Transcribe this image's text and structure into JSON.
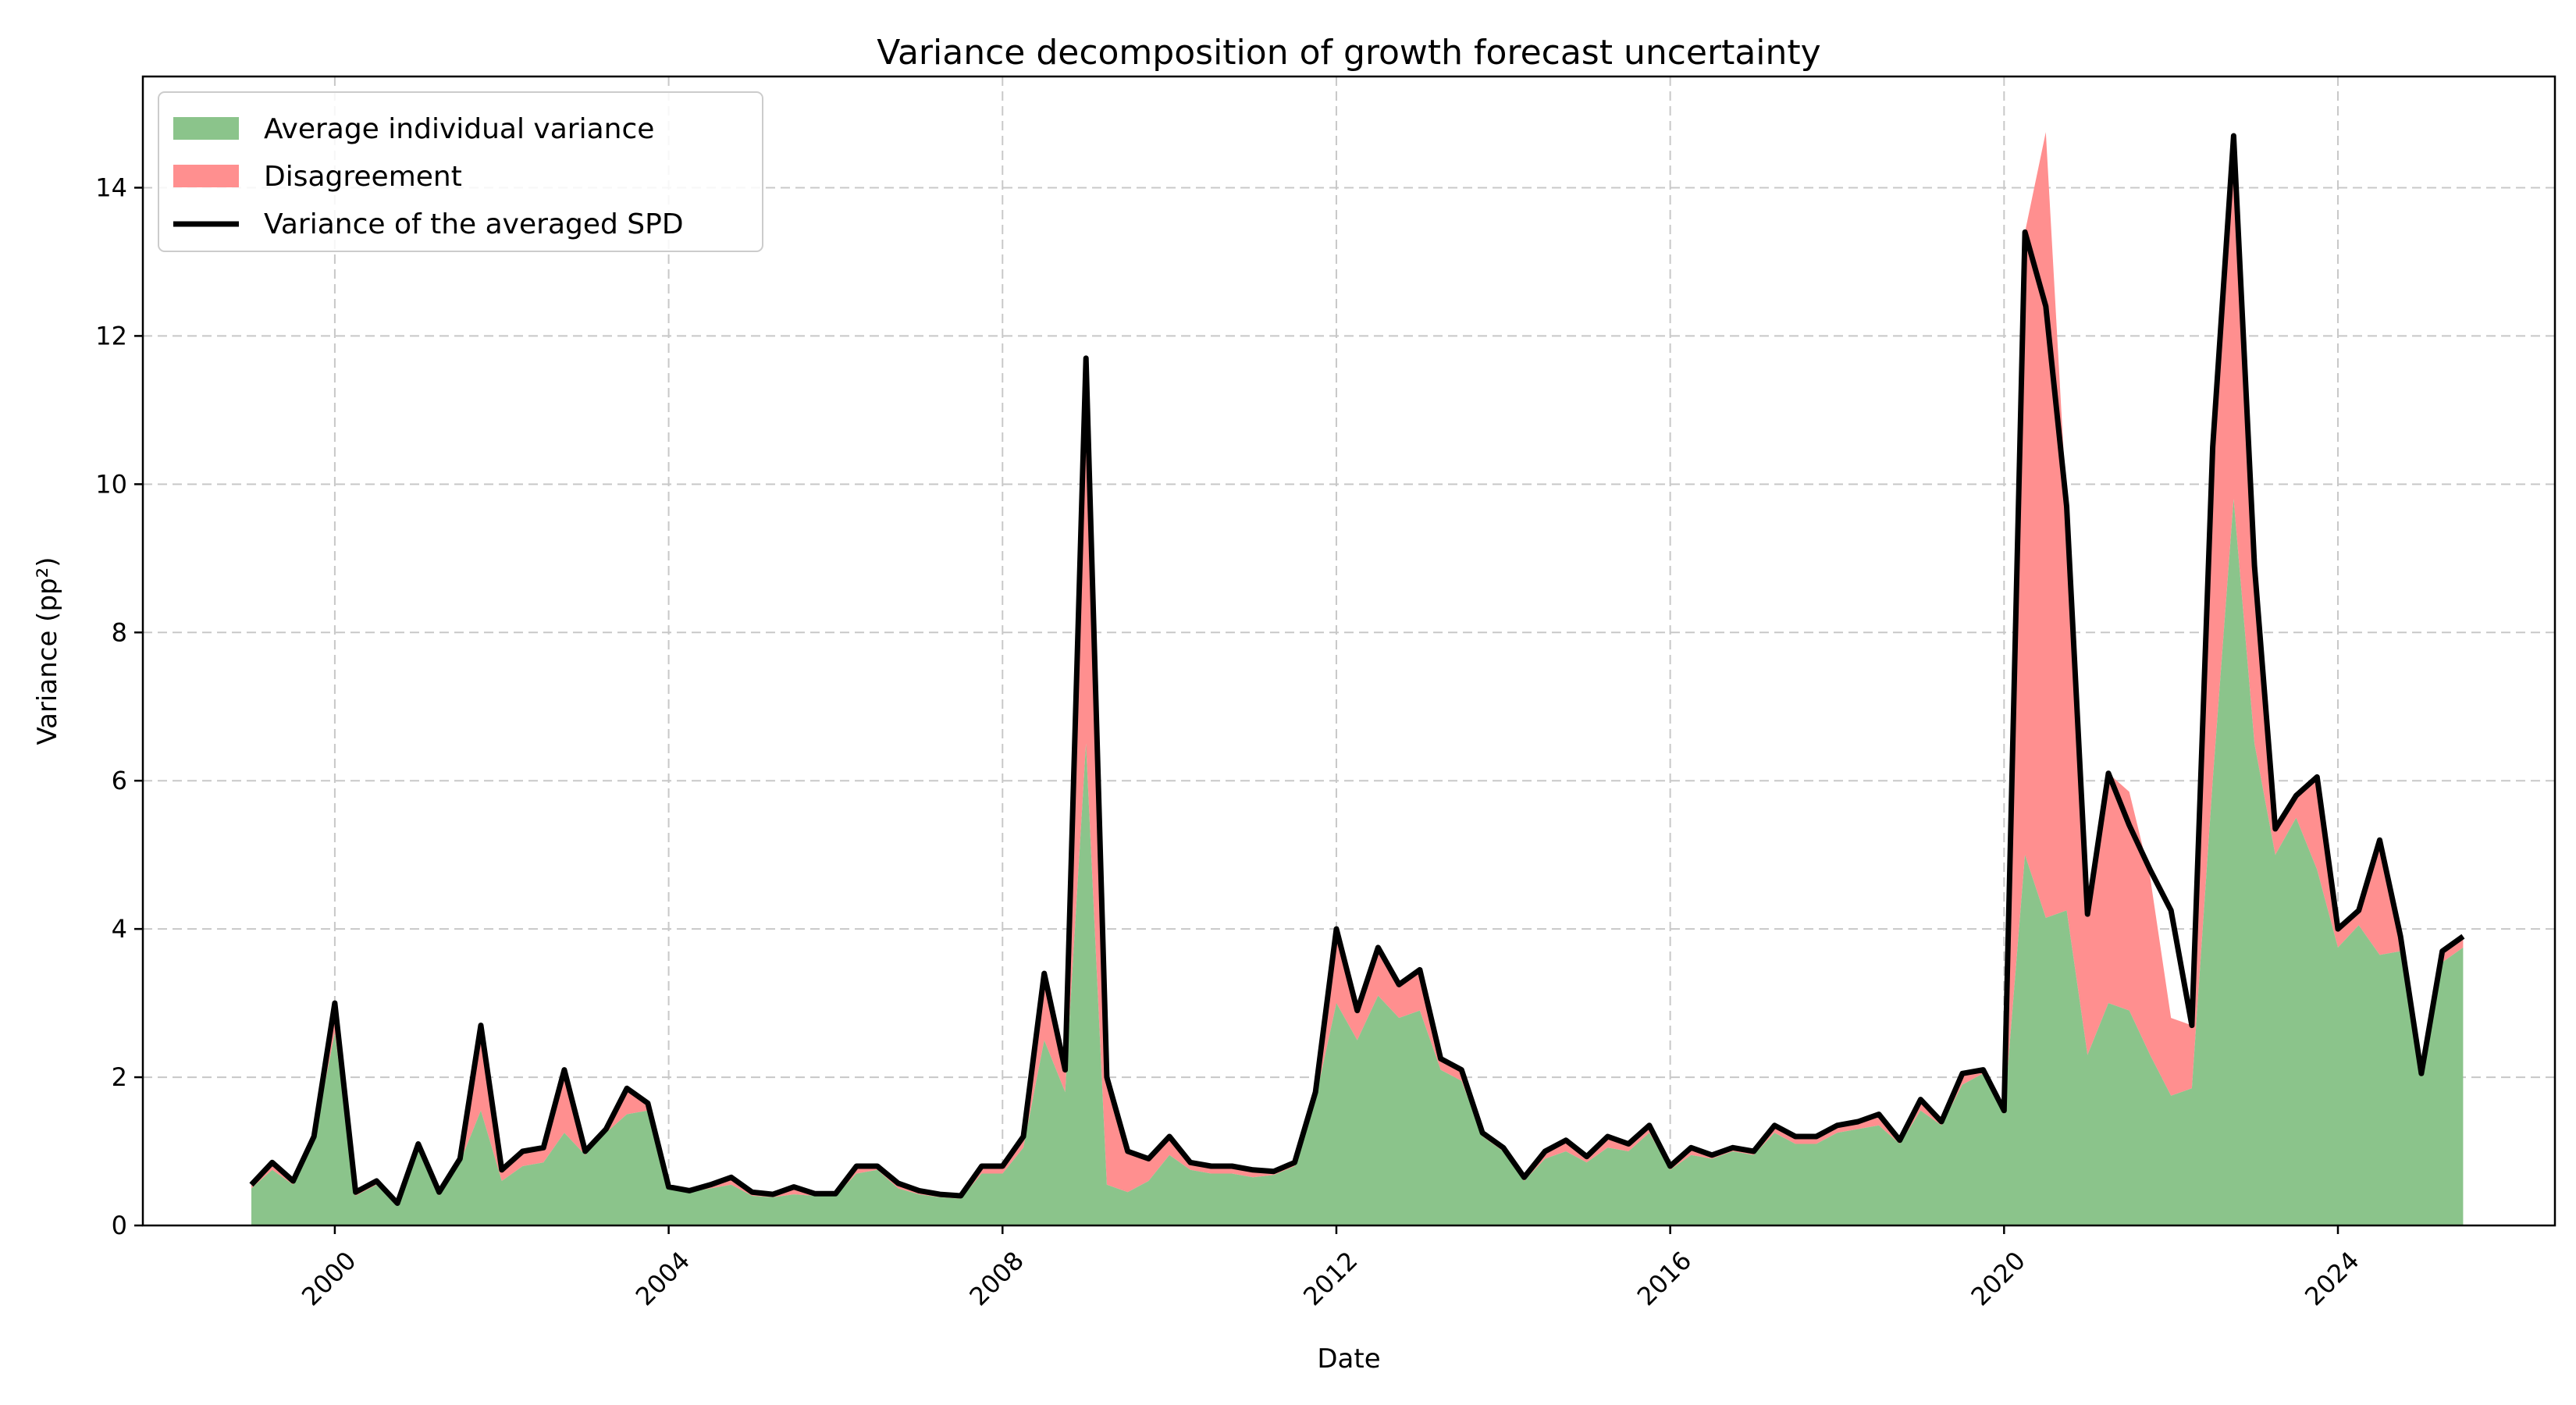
{
  "chart_data": {
    "type": "area",
    "title": "Variance decomposition of growth forecast uncertainty",
    "xlabel": "Date",
    "ylabel": "Variance (pp²)",
    "xlim": [
      1997.7,
      2026.6
    ],
    "ylim": [
      0,
      15.5
    ],
    "grid": true,
    "legend_position": "top-left",
    "x_ticks": [
      2000,
      2004,
      2008,
      2012,
      2016,
      2020,
      2024
    ],
    "x_tick_labels": [
      "2000",
      "2004",
      "2008",
      "2012",
      "2016",
      "2020",
      "2024"
    ],
    "y_ticks": [
      0,
      2,
      4,
      6,
      8,
      10,
      12,
      14
    ],
    "y_tick_labels": [
      "0",
      "2",
      "4",
      "6",
      "8",
      "10",
      "12",
      "14"
    ],
    "colors": {
      "individual": "#8bc48b",
      "disagreement": "#ff8f8f",
      "total": "#000000",
      "grid": "#c8c8c8"
    },
    "legend": [
      {
        "label": "Average individual variance",
        "kind": "patch",
        "color": "#8bc48b"
      },
      {
        "label": "Disagreement",
        "kind": "patch",
        "color": "#ff8f8f"
      },
      {
        "label": "Variance of the averaged SPD",
        "kind": "line",
        "color": "#000000"
      }
    ],
    "x": [
      1999.0,
      1999.25,
      1999.5,
      1999.75,
      2000.0,
      2000.25,
      2000.5,
      2000.75,
      2001.0,
      2001.25,
      2001.5,
      2001.75,
      2002.0,
      2002.25,
      2002.5,
      2002.75,
      2003.0,
      2003.25,
      2003.5,
      2003.75,
      2004.0,
      2004.25,
      2004.5,
      2004.75,
      2005.0,
      2005.25,
      2005.5,
      2005.75,
      2006.0,
      2006.25,
      2006.5,
      2006.75,
      2007.0,
      2007.25,
      2007.5,
      2007.75,
      2008.0,
      2008.25,
      2008.5,
      2008.75,
      2009.0,
      2009.25,
      2009.5,
      2009.75,
      2010.0,
      2010.25,
      2010.5,
      2010.75,
      2011.0,
      2011.25,
      2011.5,
      2011.75,
      2012.0,
      2012.25,
      2012.5,
      2012.75,
      2013.0,
      2013.25,
      2013.5,
      2013.75,
      2014.0,
      2014.25,
      2014.5,
      2014.75,
      2015.0,
      2015.25,
      2015.5,
      2015.75,
      2016.0,
      2016.25,
      2016.5,
      2016.75,
      2017.0,
      2017.25,
      2017.5,
      2017.75,
      2018.0,
      2018.25,
      2018.5,
      2018.75,
      2019.0,
      2019.25,
      2019.5,
      2019.75,
      2020.0,
      2020.25,
      2020.5,
      2020.75,
      2021.0,
      2021.25,
      2021.5,
      2021.75,
      2022.0,
      2022.25,
      2022.5,
      2022.75,
      2023.0,
      2023.25,
      2023.5,
      2023.75,
      2024.0,
      2024.25,
      2024.5,
      2024.75,
      2025.0,
      2025.25,
      2025.5
    ],
    "series": [
      {
        "name": "Average individual variance",
        "values": [
          0.5,
          0.75,
          0.55,
          1.15,
          2.6,
          0.4,
          0.55,
          0.3,
          1.05,
          0.4,
          0.85,
          1.55,
          0.6,
          0.8,
          0.85,
          1.25,
          0.95,
          1.25,
          1.5,
          1.55,
          0.5,
          0.45,
          0.5,
          0.55,
          0.4,
          0.38,
          0.42,
          0.4,
          0.4,
          0.7,
          0.75,
          0.5,
          0.42,
          0.38,
          0.36,
          0.7,
          0.7,
          1.05,
          2.5,
          1.8,
          6.5,
          0.55,
          0.45,
          0.6,
          0.95,
          0.75,
          0.7,
          0.7,
          0.65,
          0.68,
          0.8,
          1.7,
          3.0,
          2.5,
          3.1,
          2.8,
          2.9,
          2.1,
          1.95,
          1.2,
          1.0,
          0.6,
          0.9,
          1.0,
          0.85,
          1.05,
          1.0,
          1.25,
          0.75,
          0.95,
          0.9,
          1.0,
          0.95,
          1.25,
          1.1,
          1.1,
          1.25,
          1.3,
          1.35,
          1.1,
          1.55,
          1.35,
          1.9,
          2.05,
          1.5,
          5.0,
          4.15,
          4.25,
          2.3,
          3.0,
          2.9,
          2.3,
          1.75,
          1.85,
          6.0,
          9.8,
          6.5,
          5.0,
          5.5,
          4.8,
          3.75,
          4.05,
          3.65,
          3.7,
          2.0,
          3.55,
          3.75
        ]
      },
      {
        "name": "Disagreement",
        "values": [
          0.05,
          0.1,
          0.05,
          0.05,
          0.4,
          0.05,
          0.05,
          0.0,
          0.05,
          0.05,
          0.05,
          1.15,
          0.15,
          0.2,
          0.2,
          0.85,
          0.05,
          0.05,
          0.35,
          0.1,
          0.02,
          0.02,
          0.05,
          0.1,
          0.05,
          0.04,
          0.1,
          0.03,
          0.03,
          0.1,
          0.05,
          0.07,
          0.05,
          0.04,
          0.04,
          0.1,
          0.1,
          0.15,
          0.9,
          0.3,
          5.2,
          1.45,
          0.55,
          0.3,
          0.25,
          0.1,
          0.1,
          0.1,
          0.1,
          0.05,
          0.05,
          0.1,
          1.0,
          0.4,
          0.65,
          0.45,
          0.55,
          0.15,
          0.15,
          0.05,
          0.05,
          0.05,
          0.1,
          0.15,
          0.08,
          0.15,
          0.1,
          0.1,
          0.05,
          0.1,
          0.05,
          0.05,
          0.05,
          0.1,
          0.1,
          0.1,
          0.1,
          0.1,
          0.15,
          0.05,
          0.15,
          0.05,
          0.15,
          0.05,
          0.05,
          8.4,
          10.6,
          5.45,
          1.9,
          3.1,
          2.95,
          2.4,
          1.05,
          0.85,
          4.5,
          4.9,
          2.4,
          0.35,
          0.3,
          1.25,
          0.25,
          0.2,
          1.55,
          0.2,
          0.05,
          0.15,
          0.15
        ]
      },
      {
        "name": "Variance of the averaged SPD",
        "values": [
          0.55,
          0.85,
          0.6,
          1.2,
          3.0,
          0.45,
          0.6,
          0.3,
          1.1,
          0.45,
          0.9,
          2.7,
          0.75,
          1.0,
          1.05,
          2.1,
          1.0,
          1.3,
          1.85,
          1.65,
          0.52,
          0.47,
          0.55,
          0.65,
          0.45,
          0.42,
          0.52,
          0.43,
          0.43,
          0.8,
          0.8,
          0.57,
          0.47,
          0.42,
          0.4,
          0.8,
          0.8,
          1.2,
          3.4,
          2.1,
          11.7,
          2.0,
          1.0,
          0.9,
          1.2,
          0.85,
          0.8,
          0.8,
          0.75,
          0.73,
          0.85,
          1.8,
          4.0,
          2.9,
          3.75,
          3.25,
          3.45,
          2.25,
          2.1,
          1.25,
          1.05,
          0.65,
          1.0,
          1.15,
          0.93,
          1.2,
          1.1,
          1.35,
          0.8,
          1.05,
          0.95,
          1.05,
          1.0,
          1.35,
          1.2,
          1.2,
          1.35,
          1.4,
          1.5,
          1.15,
          1.7,
          1.4,
          2.05,
          2.1,
          1.55,
          13.4,
          12.4,
          9.7,
          4.2,
          6.1,
          5.4,
          4.8,
          4.25,
          2.7,
          10.5,
          14.7,
          8.9,
          5.35,
          5.8,
          6.05,
          4.0,
          4.25,
          5.2,
          3.9,
          2.05,
          3.7,
          3.9
        ]
      }
    ]
  }
}
